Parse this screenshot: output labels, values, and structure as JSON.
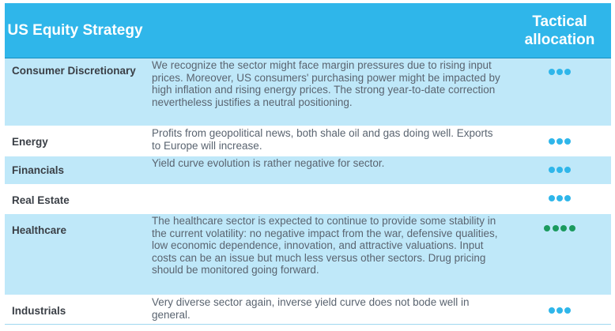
{
  "header": {
    "left": "US Equity Strategy",
    "right": "Tactical allocation"
  },
  "colors": {
    "header_bg": "#2fb6ea",
    "row_blue": "#bfe8f9",
    "dot_blue": "#2fb6ea",
    "dot_green": "#1b9a5e"
  },
  "rows": [
    {
      "sector": "Consumer Discretionary",
      "comment": "We recognize the sector might face margin pressures due to rising input prices. Moreover, US consumers' purchasing power might be impacted by high inflation and rising energy prices. The strong year-to-date correction nevertheless justifies a neutral positioning.",
      "dots": 3,
      "dot_color": "blue"
    },
    {
      "sector": "Energy",
      "comment": "Profits from geopolitical news, both shale oil and gas doing well. Exports to Europe will increase.",
      "dots": 3,
      "dot_color": "blue"
    },
    {
      "sector": "Financials",
      "comment": "Yield curve evolution is rather negative for sector.",
      "dots": 3,
      "dot_color": "blue"
    },
    {
      "sector": "Real Estate",
      "comment": "",
      "dots": 3,
      "dot_color": "blue"
    },
    {
      "sector": "Healthcare",
      "comment": "The healthcare sector is expected to continue to provide some stability in the current volatility: no negative impact from the war, defensive qualities, low economic dependence, innovation, and attractive valuations. Input costs can be an issue but much less versus other sectors. Drug pricing should be monitored going forward.",
      "dots": 4,
      "dot_color": "green"
    },
    {
      "sector": "Industrials",
      "comment": "Very diverse sector again, inverse yield curve does not bode well in general.",
      "dots": 3,
      "dot_color": "blue"
    }
  ]
}
